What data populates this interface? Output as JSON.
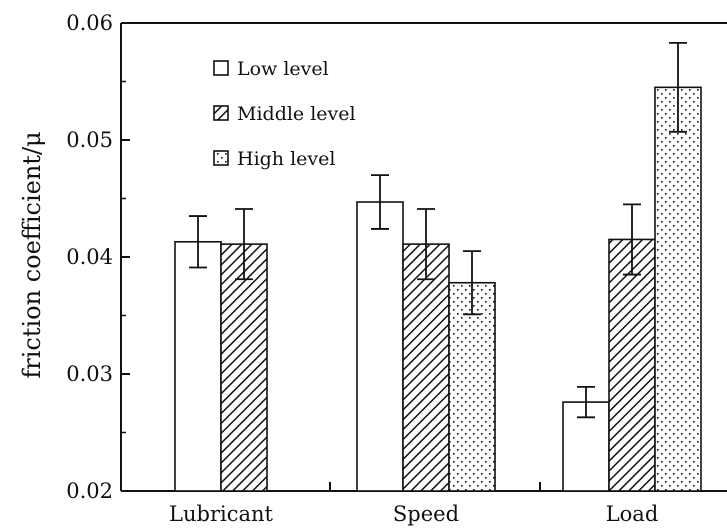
{
  "chart_data": {
    "type": "bar",
    "title": "",
    "xlabel": "",
    "ylabel": "friction coefficient/μ",
    "ylim": [
      0.02,
      0.06
    ],
    "yticks": [
      "0.02",
      "0.03",
      "0.04",
      "0.05",
      "0.06"
    ],
    "categories": [
      "Lubricant",
      "Speed",
      "Load"
    ],
    "series": [
      {
        "name": "Low level",
        "pattern": "open",
        "values": [
          0.0413,
          0.0447,
          0.0276
        ],
        "errors": [
          0.0022,
          0.0023,
          0.0013
        ]
      },
      {
        "name": "Middle level",
        "pattern": "hatched",
        "values": [
          0.0411,
          0.0411,
          0.0415
        ],
        "errors": [
          0.003,
          0.003,
          0.003
        ]
      },
      {
        "name": "High level",
        "pattern": "dotted",
        "values": [
          null,
          0.0378,
          0.0545
        ],
        "errors": [
          null,
          0.0027,
          0.0038
        ]
      }
    ],
    "legend_position": "top-left",
    "grid": false,
    "colors": {
      "ink": "#111111",
      "background": "#ffffff"
    }
  }
}
